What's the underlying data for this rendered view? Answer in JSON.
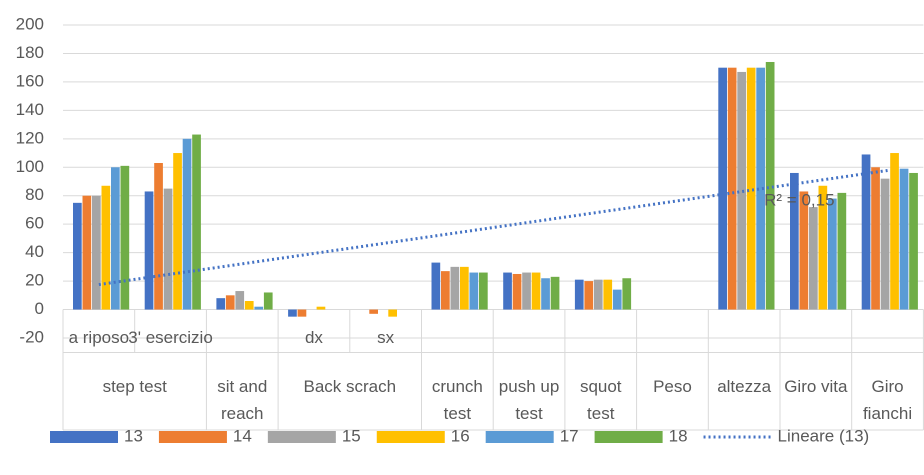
{
  "chart_data": {
    "type": "bar",
    "categories": [
      "a riposo",
      "3' esercizio",
      null,
      "dx",
      "sx",
      null,
      null,
      null,
      null,
      null,
      null,
      null
    ],
    "groups": [
      {
        "name": "step test",
        "size": 2
      },
      {
        "name": "sit and reach",
        "size": 1
      },
      {
        "name": "Back scrach",
        "size": 2
      },
      {
        "name": "crunch test",
        "size": 1
      },
      {
        "name": "push up test",
        "size": 1
      },
      {
        "name": "squot test",
        "size": 1
      },
      {
        "name": "Peso",
        "size": 1
      },
      {
        "name": "altezza",
        "size": 1
      },
      {
        "name": "Giro vita",
        "size": 1
      },
      {
        "name": "Giro fianchi",
        "size": 1
      }
    ],
    "series": [
      {
        "name": "13",
        "color": "#4472c4",
        "values": [
          75,
          83,
          8,
          -5,
          0,
          33,
          26,
          21,
          null,
          170,
          96,
          109
        ]
      },
      {
        "name": "14",
        "color": "#ed7d31",
        "values": [
          80,
          103,
          10,
          -5,
          -3,
          27,
          25,
          20,
          null,
          170,
          83,
          100
        ]
      },
      {
        "name": "15",
        "color": "#a5a5a5",
        "values": [
          80,
          85,
          13,
          0,
          0,
          30,
          26,
          21,
          null,
          167,
          72,
          92
        ]
      },
      {
        "name": "16",
        "color": "#ffc000",
        "values": [
          87,
          110,
          6,
          2,
          -5,
          30,
          26,
          21,
          null,
          170,
          87,
          110
        ]
      },
      {
        "name": "17",
        "color": "#5b9bd5",
        "values": [
          100,
          120,
          2,
          0,
          0,
          26,
          22,
          14,
          null,
          170,
          78,
          99
        ]
      },
      {
        "name": "18",
        "color": "#70ad47",
        "values": [
          101,
          123,
          12,
          0,
          0,
          26,
          23,
          22,
          null,
          174,
          82,
          96
        ]
      }
    ],
    "trendline": {
      "name": "Lineare (13)",
      "series": 0,
      "color": "#4472c4",
      "r2_label": "R² = 0,15"
    },
    "ylim": [
      -20,
      200
    ],
    "yticks": [
      -20,
      0,
      20,
      40,
      60,
      80,
      100,
      120,
      140,
      160,
      180,
      200
    ],
    "grid": true
  }
}
